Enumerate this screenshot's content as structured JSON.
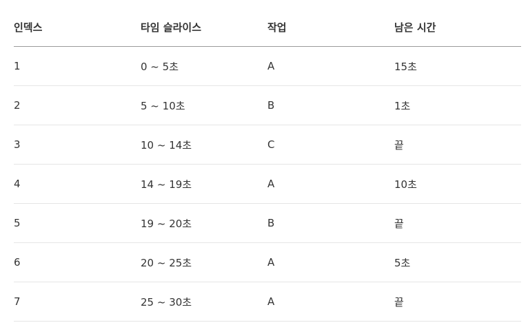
{
  "table": {
    "headers": [
      "인덱스",
      "타임 슬라이스",
      "작업",
      "남은 시간"
    ],
    "rows": [
      [
        "1",
        "0 ~ 5초",
        "A",
        "15초"
      ],
      [
        "2",
        "5 ~ 10초",
        "B",
        "1초"
      ],
      [
        "3",
        "10 ~ 14초",
        "C",
        "끝"
      ],
      [
        "4",
        "14 ~ 19초",
        "A",
        "10초"
      ],
      [
        "5",
        "19 ~ 20초",
        "B",
        "끝"
      ],
      [
        "6",
        "20 ~ 25초",
        "A",
        "5초"
      ],
      [
        "7",
        "25 ~ 30초",
        "A",
        "끝"
      ]
    ]
  }
}
